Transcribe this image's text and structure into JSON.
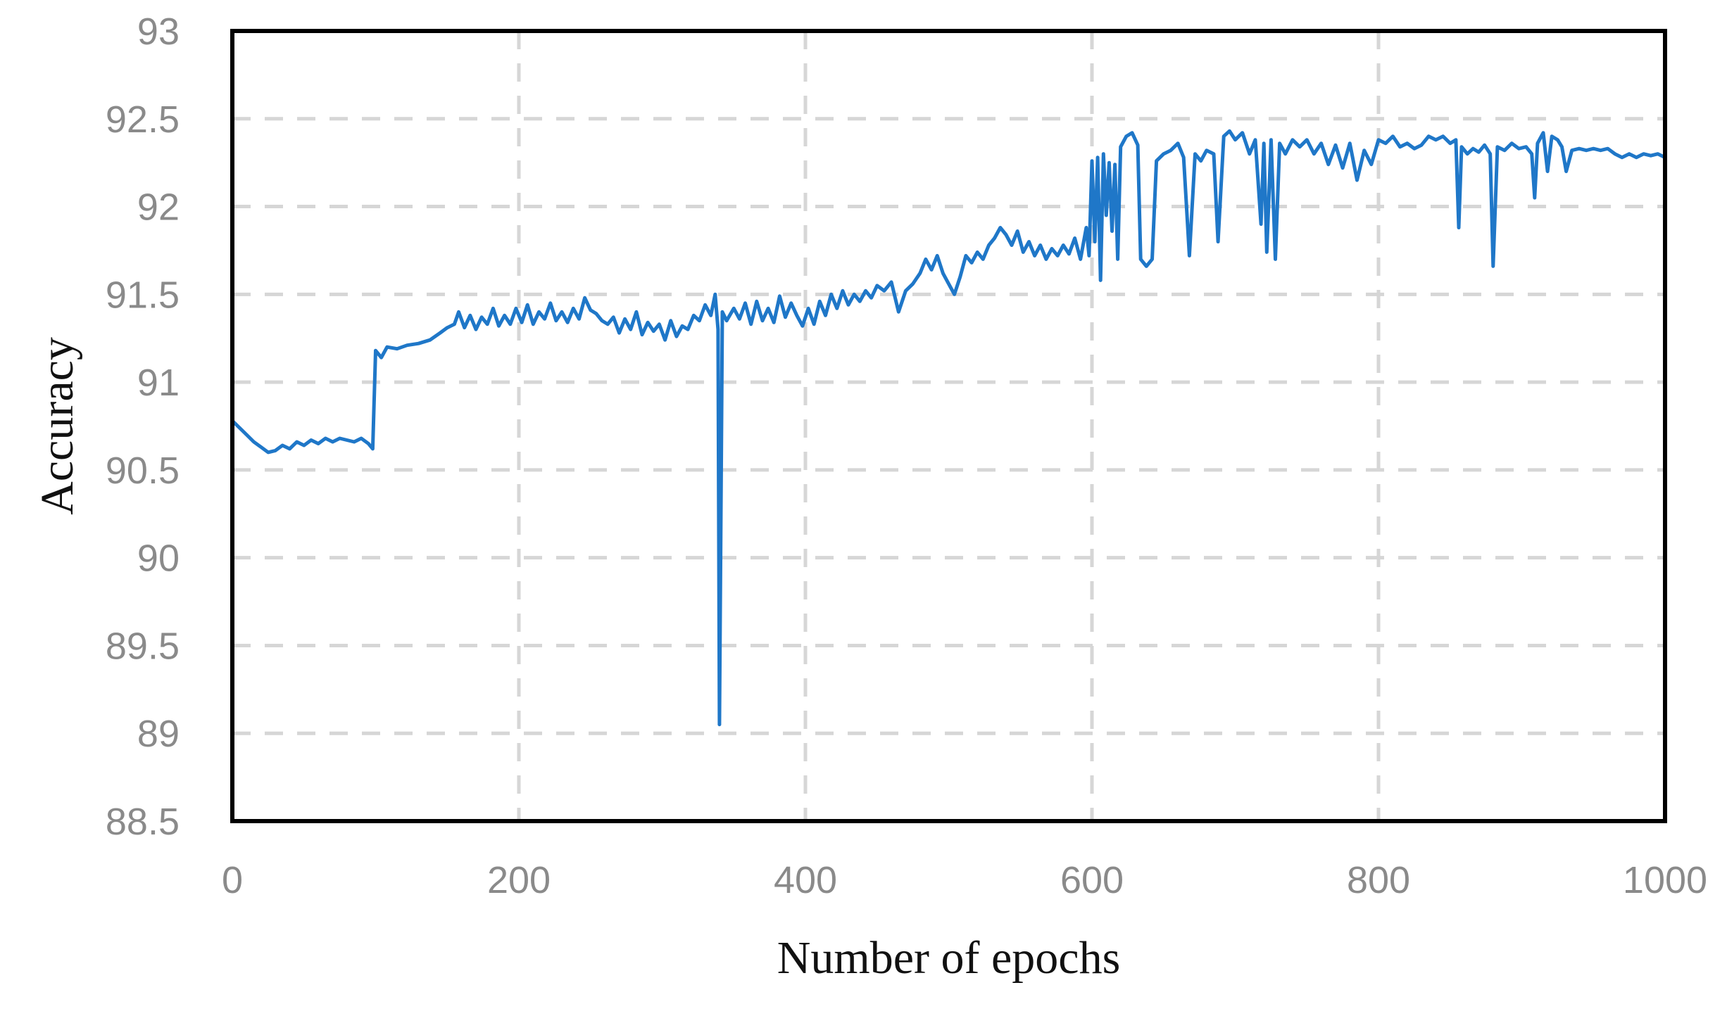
{
  "chart_data": {
    "type": "line",
    "title": "",
    "xlabel": "Number of epochs",
    "ylabel": "Accuracy",
    "xlim": [
      0,
      1000
    ],
    "ylim": [
      88.5,
      93
    ],
    "x_ticks": [
      0,
      200,
      400,
      600,
      800,
      1000
    ],
    "y_ticks": [
      88.5,
      89,
      89.5,
      90,
      90.5,
      91,
      91.5,
      92,
      92.5,
      93
    ],
    "x_tick_labels": [
      "0",
      "200",
      "400",
      "600",
      "800",
      "1000"
    ],
    "y_tick_labels": [
      "88.5",
      "89",
      "89.5",
      "90",
      "90.5",
      "91",
      "91.5",
      "92",
      "92.5",
      "93"
    ],
    "grid": true,
    "legend": "none",
    "series": [
      {
        "color": "#1f77c8",
        "points": [
          [
            0,
            90.78
          ],
          [
            5,
            90.74
          ],
          [
            10,
            90.7
          ],
          [
            15,
            90.66
          ],
          [
            20,
            90.63
          ],
          [
            25,
            90.6
          ],
          [
            30,
            90.61
          ],
          [
            35,
            90.64
          ],
          [
            40,
            90.62
          ],
          [
            45,
            90.66
          ],
          [
            50,
            90.64
          ],
          [
            55,
            90.67
          ],
          [
            60,
            90.65
          ],
          [
            65,
            90.68
          ],
          [
            70,
            90.66
          ],
          [
            75,
            90.68
          ],
          [
            80,
            90.67
          ],
          [
            85,
            90.66
          ],
          [
            90,
            90.68
          ],
          [
            95,
            90.65
          ],
          [
            98,
            90.62
          ],
          [
            100,
            91.18
          ],
          [
            104,
            91.14
          ],
          [
            108,
            91.2
          ],
          [
            115,
            91.19
          ],
          [
            122,
            91.21
          ],
          [
            130,
            91.22
          ],
          [
            138,
            91.24
          ],
          [
            145,
            91.28
          ],
          [
            150,
            91.31
          ],
          [
            155,
            91.33
          ],
          [
            158,
            91.4
          ],
          [
            162,
            91.31
          ],
          [
            166,
            91.38
          ],
          [
            170,
            91.3
          ],
          [
            174,
            91.37
          ],
          [
            178,
            91.33
          ],
          [
            182,
            91.42
          ],
          [
            186,
            91.32
          ],
          [
            190,
            91.38
          ],
          [
            194,
            91.33
          ],
          [
            198,
            91.42
          ],
          [
            202,
            91.34
          ],
          [
            206,
            91.44
          ],
          [
            210,
            91.33
          ],
          [
            214,
            91.4
          ],
          [
            218,
            91.36
          ],
          [
            222,
            91.45
          ],
          [
            226,
            91.35
          ],
          [
            230,
            91.4
          ],
          [
            234,
            91.34
          ],
          [
            238,
            91.42
          ],
          [
            242,
            91.36
          ],
          [
            246,
            91.48
          ],
          [
            250,
            91.41
          ],
          [
            254,
            91.39
          ],
          [
            258,
            91.35
          ],
          [
            262,
            91.33
          ],
          [
            266,
            91.37
          ],
          [
            270,
            91.28
          ],
          [
            274,
            91.36
          ],
          [
            278,
            91.3
          ],
          [
            282,
            91.4
          ],
          [
            286,
            91.27
          ],
          [
            290,
            91.34
          ],
          [
            294,
            91.29
          ],
          [
            298,
            91.33
          ],
          [
            302,
            91.24
          ],
          [
            306,
            91.35
          ],
          [
            310,
            91.26
          ],
          [
            314,
            91.32
          ],
          [
            318,
            91.3
          ],
          [
            322,
            91.38
          ],
          [
            326,
            91.35
          ],
          [
            330,
            91.44
          ],
          [
            334,
            91.38
          ],
          [
            337,
            91.5
          ],
          [
            339,
            91.3
          ],
          [
            340,
            89.05
          ],
          [
            342,
            91.4
          ],
          [
            345,
            91.35
          ],
          [
            350,
            91.42
          ],
          [
            354,
            91.36
          ],
          [
            358,
            91.45
          ],
          [
            362,
            91.33
          ],
          [
            366,
            91.46
          ],
          [
            370,
            91.35
          ],
          [
            374,
            91.42
          ],
          [
            378,
            91.34
          ],
          [
            382,
            91.49
          ],
          [
            386,
            91.37
          ],
          [
            390,
            91.45
          ],
          [
            394,
            91.38
          ],
          [
            398,
            91.32
          ],
          [
            402,
            91.42
          ],
          [
            406,
            91.33
          ],
          [
            410,
            91.46
          ],
          [
            414,
            91.38
          ],
          [
            418,
            91.5
          ],
          [
            422,
            91.42
          ],
          [
            426,
            91.52
          ],
          [
            430,
            91.44
          ],
          [
            434,
            91.5
          ],
          [
            438,
            91.46
          ],
          [
            442,
            91.52
          ],
          [
            446,
            91.48
          ],
          [
            450,
            91.55
          ],
          [
            455,
            91.52
          ],
          [
            460,
            91.57
          ],
          [
            465,
            91.4
          ],
          [
            470,
            91.52
          ],
          [
            475,
            91.56
          ],
          [
            480,
            91.62
          ],
          [
            484,
            91.7
          ],
          [
            488,
            91.64
          ],
          [
            492,
            91.72
          ],
          [
            496,
            91.62
          ],
          [
            500,
            91.56
          ],
          [
            504,
            91.5
          ],
          [
            508,
            91.6
          ],
          [
            512,
            91.72
          ],
          [
            516,
            91.68
          ],
          [
            520,
            91.74
          ],
          [
            524,
            91.7
          ],
          [
            528,
            91.78
          ],
          [
            532,
            91.82
          ],
          [
            536,
            91.88
          ],
          [
            540,
            91.84
          ],
          [
            544,
            91.78
          ],
          [
            548,
            91.86
          ],
          [
            552,
            91.74
          ],
          [
            556,
            91.8
          ],
          [
            560,
            91.72
          ],
          [
            564,
            91.78
          ],
          [
            568,
            91.7
          ],
          [
            572,
            91.76
          ],
          [
            576,
            91.72
          ],
          [
            580,
            91.78
          ],
          [
            584,
            91.73
          ],
          [
            588,
            91.82
          ],
          [
            592,
            91.7
          ],
          [
            596,
            91.88
          ],
          [
            598,
            91.72
          ],
          [
            600,
            92.26
          ],
          [
            602,
            91.8
          ],
          [
            604,
            92.28
          ],
          [
            606,
            91.58
          ],
          [
            608,
            92.3
          ],
          [
            610,
            91.95
          ],
          [
            612,
            92.25
          ],
          [
            614,
            91.86
          ],
          [
            616,
            92.24
          ],
          [
            618,
            91.7
          ],
          [
            620,
            92.34
          ],
          [
            624,
            92.4
          ],
          [
            628,
            92.42
          ],
          [
            632,
            92.35
          ],
          [
            634,
            91.7
          ],
          [
            638,
            91.66
          ],
          [
            642,
            91.7
          ],
          [
            645,
            92.26
          ],
          [
            650,
            92.3
          ],
          [
            655,
            92.32
          ],
          [
            660,
            92.36
          ],
          [
            664,
            92.28
          ],
          [
            668,
            91.72
          ],
          [
            672,
            92.3
          ],
          [
            676,
            92.26
          ],
          [
            680,
            92.32
          ],
          [
            685,
            92.3
          ],
          [
            688,
            91.8
          ],
          [
            692,
            92.4
          ],
          [
            696,
            92.43
          ],
          [
            700,
            92.38
          ],
          [
            705,
            92.42
          ],
          [
            710,
            92.3
          ],
          [
            714,
            92.38
          ],
          [
            718,
            91.9
          ],
          [
            720,
            92.36
          ],
          [
            722,
            91.74
          ],
          [
            725,
            92.38
          ],
          [
            728,
            91.7
          ],
          [
            731,
            92.36
          ],
          [
            735,
            92.3
          ],
          [
            740,
            92.38
          ],
          [
            745,
            92.34
          ],
          [
            750,
            92.38
          ],
          [
            755,
            92.3
          ],
          [
            760,
            92.36
          ],
          [
            765,
            92.24
          ],
          [
            770,
            92.35
          ],
          [
            775,
            92.22
          ],
          [
            780,
            92.36
          ],
          [
            785,
            92.15
          ],
          [
            790,
            92.32
          ],
          [
            795,
            92.24
          ],
          [
            800,
            92.38
          ],
          [
            805,
            92.36
          ],
          [
            810,
            92.4
          ],
          [
            815,
            92.34
          ],
          [
            820,
            92.36
          ],
          [
            825,
            92.33
          ],
          [
            830,
            92.35
          ],
          [
            835,
            92.4
          ],
          [
            840,
            92.38
          ],
          [
            845,
            92.4
          ],
          [
            850,
            92.36
          ],
          [
            854,
            92.38
          ],
          [
            856,
            91.88
          ],
          [
            858,
            92.34
          ],
          [
            862,
            92.3
          ],
          [
            866,
            92.33
          ],
          [
            870,
            92.31
          ],
          [
            874,
            92.35
          ],
          [
            878,
            92.3
          ],
          [
            880,
            91.66
          ],
          [
            883,
            92.34
          ],
          [
            888,
            92.32
          ],
          [
            893,
            92.36
          ],
          [
            898,
            92.33
          ],
          [
            903,
            92.34
          ],
          [
            907,
            92.3
          ],
          [
            909,
            92.05
          ],
          [
            911,
            92.36
          ],
          [
            915,
            92.42
          ],
          [
            918,
            92.2
          ],
          [
            921,
            92.4
          ],
          [
            925,
            92.38
          ],
          [
            928,
            92.34
          ],
          [
            931,
            92.2
          ],
          [
            935,
            92.32
          ],
          [
            940,
            92.33
          ],
          [
            945,
            92.32
          ],
          [
            950,
            92.33
          ],
          [
            955,
            92.32
          ],
          [
            960,
            92.33
          ],
          [
            965,
            92.3
          ],
          [
            970,
            92.28
          ],
          [
            975,
            92.3
          ],
          [
            980,
            92.28
          ],
          [
            985,
            92.3
          ],
          [
            990,
            92.29
          ],
          [
            995,
            92.3
          ],
          [
            1000,
            92.28
          ]
        ]
      }
    ]
  }
}
